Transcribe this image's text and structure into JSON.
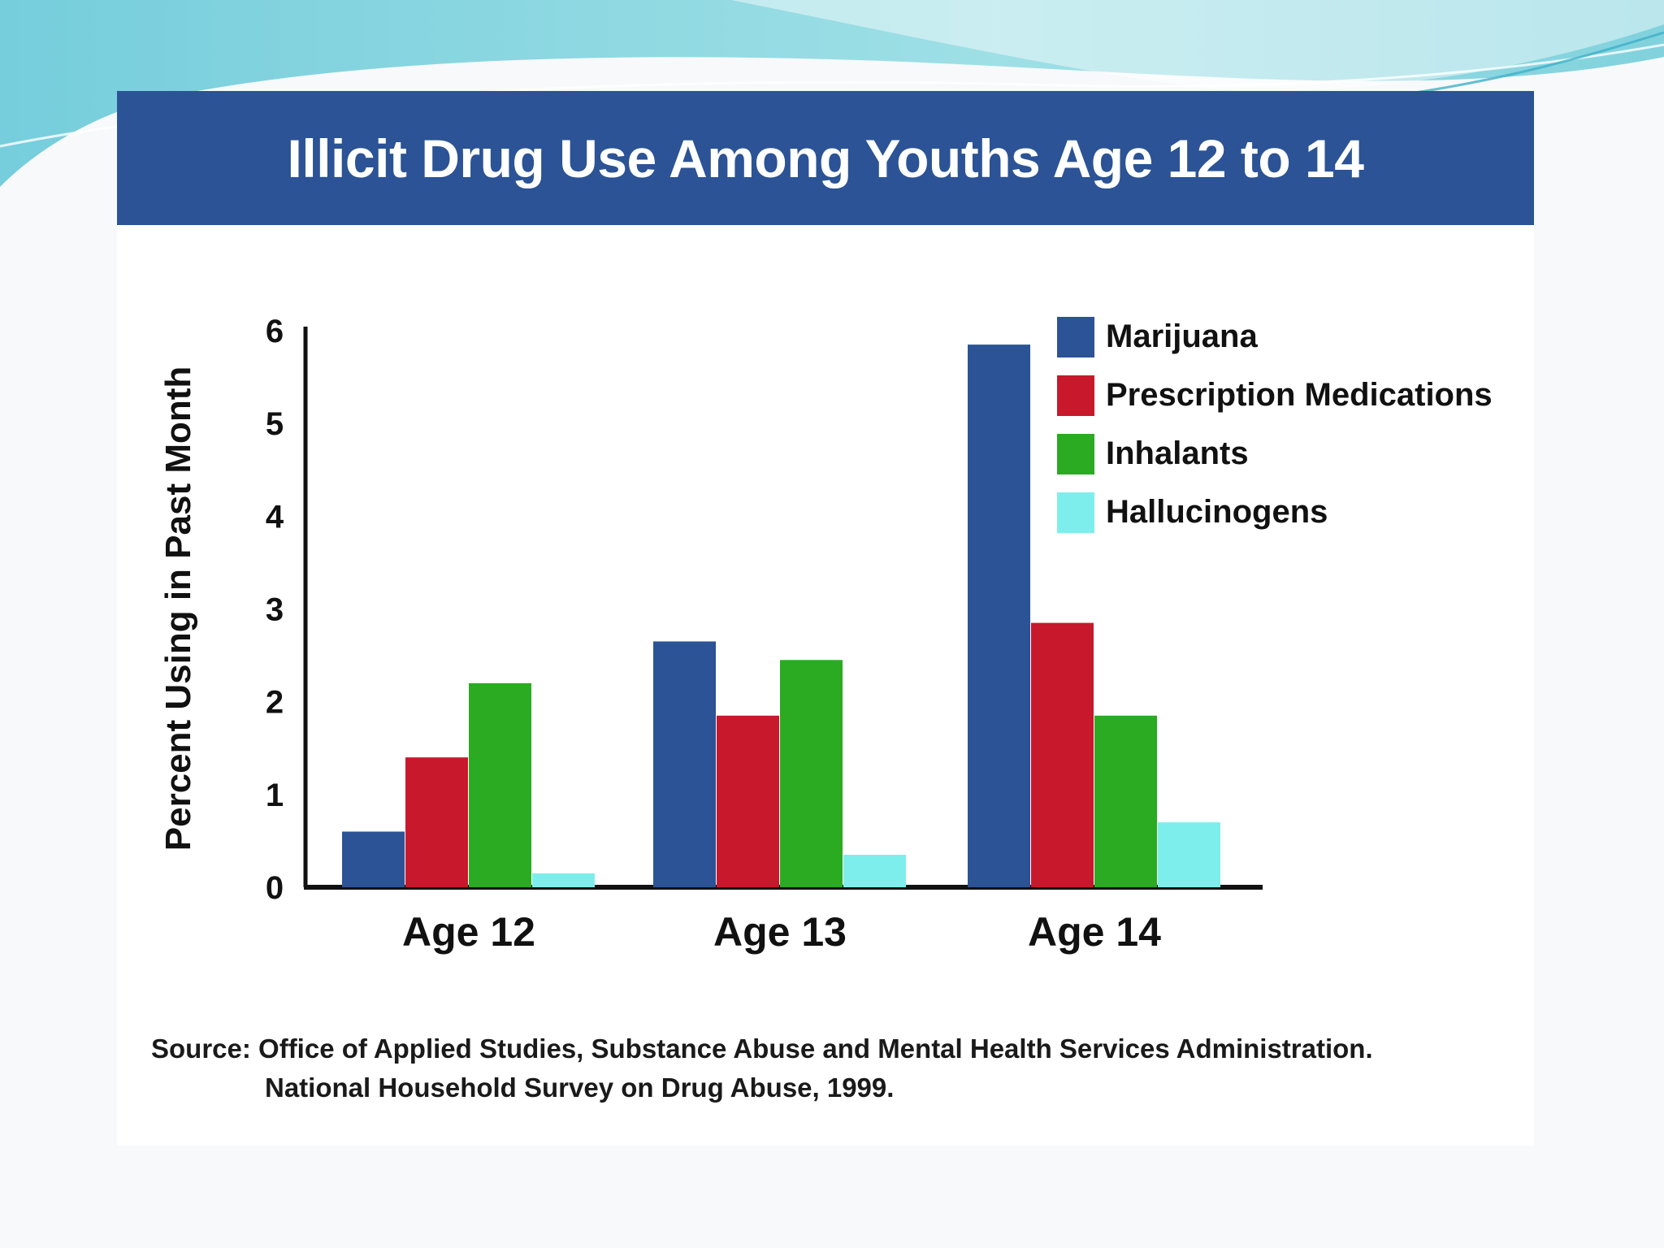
{
  "slide": {
    "title": "Illicit Drug Use Among Youths Age 12 to 14",
    "source_line1": "Source: Office of Applied Studies, Substance Abuse and Mental Health Services Administration.",
    "source_line2": "National Household Survey on Drug Abuse, 1999.",
    "colors": {
      "title_bar": "#2b5395",
      "wave": "#7fd3dc"
    }
  },
  "chart_data": {
    "type": "bar",
    "title": "Illicit Drug Use Among Youths Age 12 to 14",
    "xlabel": "",
    "ylabel": "Percent Using in Past Month",
    "ylim": [
      0,
      6
    ],
    "yticks": [
      0,
      1,
      2,
      3,
      4,
      5,
      6
    ],
    "categories": [
      "Age 12",
      "Age 13",
      "Age 14"
    ],
    "series": [
      {
        "name": "Marijuana",
        "color": "#2b5395",
        "values": [
          0.6,
          2.65,
          5.85
        ]
      },
      {
        "name": "Prescription Medications",
        "color": "#c8182c",
        "values": [
          1.4,
          1.85,
          2.85
        ]
      },
      {
        "name": "Inhalants",
        "color": "#2aab22",
        "values": [
          2.2,
          2.45,
          1.85
        ]
      },
      {
        "name": "Hallucinogens",
        "color": "#7eeeed",
        "values": [
          0.15,
          0.35,
          0.7
        ]
      }
    ],
    "legend_position": "top-right",
    "grid": false
  }
}
